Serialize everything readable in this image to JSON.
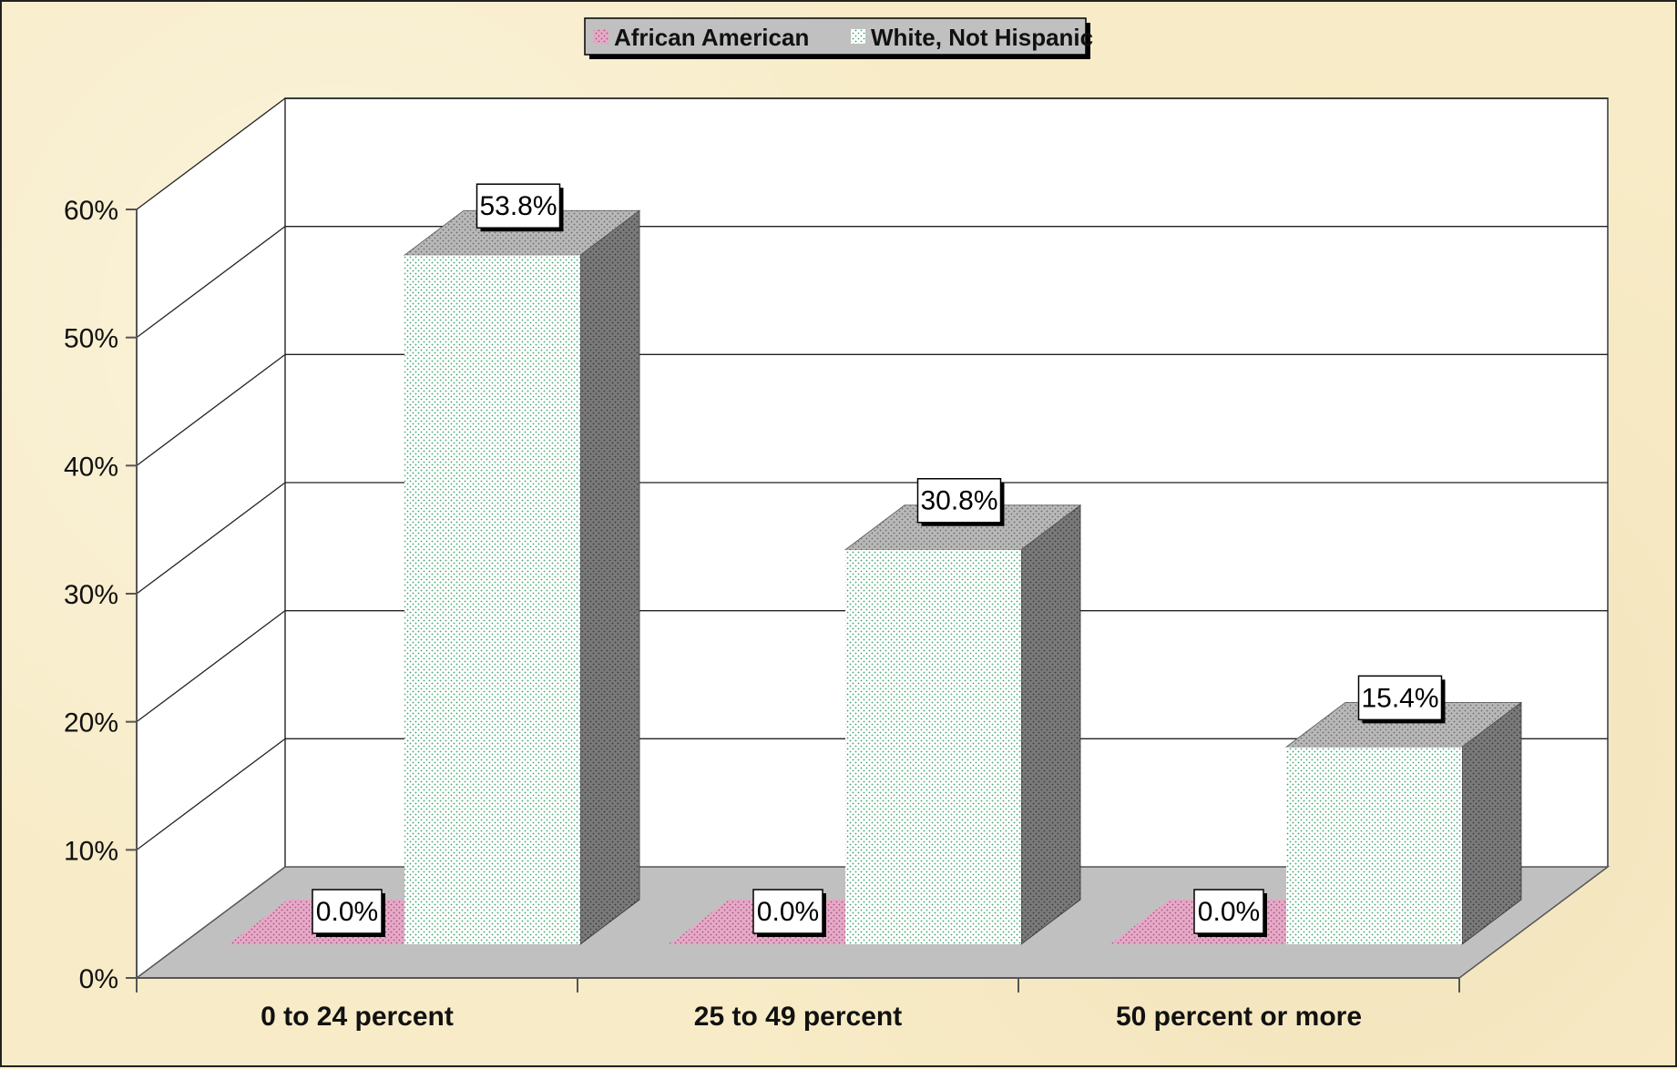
{
  "chart_data": {
    "type": "bar",
    "title": "",
    "xlabel": "",
    "ylabel": "",
    "categories": [
      "0 to 24 percent",
      "25 to 49 percent",
      "50 percent or more"
    ],
    "series": [
      {
        "name": "African American",
        "values": [
          0.0,
          0.0,
          0.0
        ],
        "color": "#e8a9c8"
      },
      {
        "name": "White, Not Hispanic",
        "values": [
          53.8,
          30.8,
          15.4
        ],
        "color": "#ffffff"
      }
    ],
    "data_labels": [
      [
        "0.0%",
        "0.0%",
        "0.0%"
      ],
      [
        "53.8%",
        "30.8%",
        "15.4%"
      ]
    ],
    "ylim": [
      0,
      60
    ],
    "y_ticks": [
      "0%",
      "10%",
      "20%",
      "30%",
      "40%",
      "50%",
      "60%"
    ],
    "grid": true,
    "legend": "top-center",
    "style": "3d-clustered-column",
    "colors": {
      "background": "#f8ecc8",
      "floor": "#c0c0c0",
      "bar_front_dots": "#3aa36b",
      "bar_top": "#b8b8b8",
      "bar_side": "#7a7a7a",
      "pink_bar": "#e8a9c8"
    }
  }
}
